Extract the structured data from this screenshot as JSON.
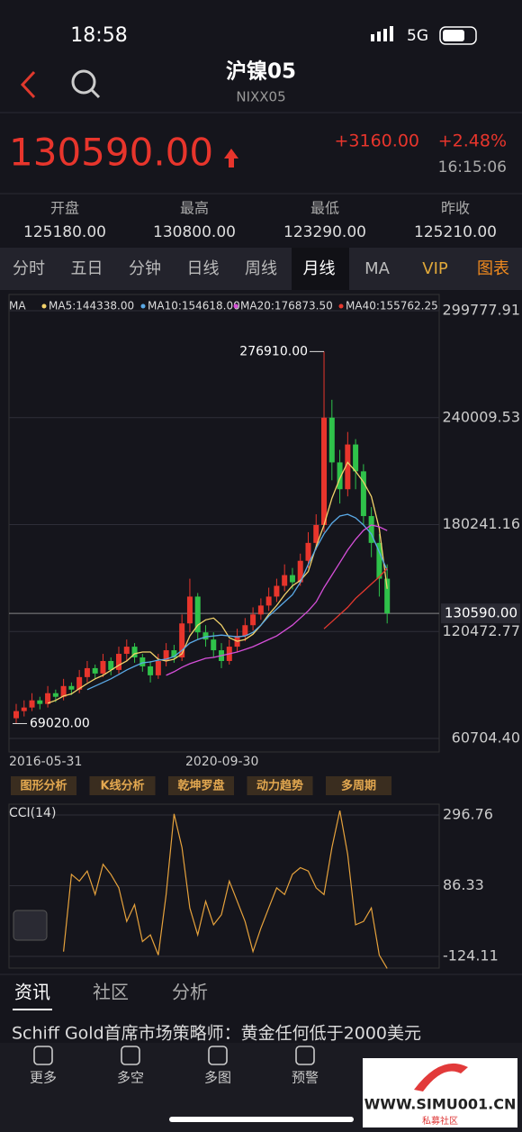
{
  "status": {
    "time": "18:58",
    "network": "5G"
  },
  "header": {
    "title": "沪镍05",
    "code": "NIXX05"
  },
  "quote": {
    "price": "130590.00",
    "change": "+3160.00",
    "pct": "+2.48%",
    "time": "16:15:06"
  },
  "stats": [
    {
      "label": "开盘",
      "value": "125180.00"
    },
    {
      "label": "最高",
      "value": "130800.00"
    },
    {
      "label": "最低",
      "value": "123290.00"
    },
    {
      "label": "昨收",
      "value": "125210.00"
    }
  ],
  "tabs": [
    "分时",
    "五日",
    "分钟",
    "日线",
    "周线",
    "月线",
    "MA",
    "VIP",
    "图表"
  ],
  "tools": [
    "图形分析",
    "K线分析",
    "乾坤罗盘",
    "动力趋势",
    "多周期"
  ],
  "news_tabs": [
    "资讯",
    "社区",
    "分析"
  ],
  "headline": "Schiff Gold首席市场策略师：黄金任何低于2000美元",
  "nav": [
    "更多",
    "多空",
    "多图",
    "预警"
  ],
  "watermark": {
    "url": "WWW.SIMU001.CN",
    "name": "私募社区"
  },
  "chart_data": [
    {
      "type": "candlestick",
      "legend_title": "MA",
      "open": [
        72000,
        76000,
        78000,
        82000,
        80000,
        86000,
        84000,
        90000,
        88000,
        95000,
        100000,
        97000,
        104000,
        99000,
        108000,
        112000,
        106000,
        101000,
        96000,
        104000,
        110000,
        106000,
        125000,
        140000,
        120000,
        116000,
        110000,
        104000,
        112000,
        118000,
        124000,
        130000,
        135000,
        140000,
        146000,
        152000,
        148000,
        160000,
        170000,
        180000,
        240000,
        215000,
        200000,
        225000,
        210000,
        185000,
        170000,
        150000
      ],
      "high": [
        80000,
        82000,
        86000,
        84000,
        90000,
        88000,
        94000,
        92000,
        99000,
        104000,
        102000,
        108000,
        106000,
        112000,
        116000,
        114000,
        108000,
        104000,
        108000,
        114000,
        113000,
        130000,
        150000,
        142000,
        124000,
        120000,
        114000,
        116000,
        122000,
        128000,
        134000,
        139000,
        145000,
        150000,
        158000,
        156000,
        164000,
        176000,
        186000,
        276910,
        250000,
        222000,
        232000,
        228000,
        214000,
        190000,
        175000,
        158000
      ],
      "low": [
        69020,
        73000,
        76000,
        77000,
        78000,
        81000,
        82000,
        85000,
        86000,
        92000,
        94000,
        95000,
        96000,
        97000,
        104000,
        103000,
        98000,
        92000,
        94000,
        101000,
        103000,
        104000,
        120000,
        116000,
        112000,
        106000,
        100000,
        102000,
        109000,
        115000,
        121000,
        127000,
        132000,
        137000,
        143000,
        144000,
        146000,
        156000,
        166000,
        176000,
        205000,
        192000,
        196000,
        200000,
        180000,
        162000,
        140000,
        125000
      ],
      "close": [
        76000,
        78000,
        82000,
        80000,
        86000,
        84000,
        90000,
        88000,
        95000,
        100000,
        97000,
        104000,
        99000,
        108000,
        112000,
        106000,
        101000,
        96000,
        104000,
        110000,
        106000,
        125000,
        140000,
        120000,
        116000,
        110000,
        104000,
        112000,
        118000,
        124000,
        130000,
        135000,
        140000,
        146000,
        152000,
        148000,
        160000,
        170000,
        180000,
        240000,
        215000,
        200000,
        225000,
        210000,
        185000,
        170000,
        150000,
        130590
      ],
      "up_color": "#e8352c",
      "down_color": "#2fc24a",
      "series": [
        {
          "name": "MA5:144338.00",
          "color": "#f3d36b",
          "values": [
            null,
            null,
            null,
            null,
            80400,
            82000,
            84400,
            85600,
            88600,
            91400,
            94000,
            96000,
            98800,
            101600,
            104000,
            108000,
            109000,
            109000,
            105000,
            104000,
            105000,
            108000,
            118000,
            124000,
            127000,
            128000,
            124000,
            117000,
            115000,
            116000,
            119000,
            124000,
            130000,
            135000,
            141000,
            146000,
            149000,
            154000,
            168000,
            180000,
            195000,
            206000,
            215000,
            210000,
            204000,
            196000,
            178000,
            144338
          ]
        },
        {
          "name": "MA10:154618.00",
          "color": "#5aa9e6",
          "values": [
            null,
            null,
            null,
            null,
            null,
            null,
            null,
            null,
            null,
            88000,
            90000,
            92000,
            94000,
            96500,
            99000,
            101000,
            103000,
            103500,
            104500,
            105000,
            106500,
            110000,
            114000,
            116000,
            117500,
            118000,
            118500,
            118000,
            117500,
            118000,
            120000,
            124000,
            129000,
            133000,
            137000,
            141000,
            148000,
            158000,
            167000,
            175000,
            181000,
            185000,
            186000,
            184000,
            180000,
            175000,
            165000,
            154618
          ]
        },
        {
          "name": "MA20:176873.50",
          "color": "#d64fd9",
          "values": [
            null,
            null,
            null,
            null,
            null,
            null,
            null,
            null,
            null,
            null,
            null,
            null,
            null,
            null,
            null,
            null,
            null,
            null,
            null,
            96000,
            98000,
            100500,
            102500,
            104000,
            105500,
            106000,
            107000,
            108000,
            109000,
            110500,
            112000,
            114000,
            116000,
            118000,
            121000,
            124000,
            128000,
            132000,
            137000,
            145000,
            152000,
            159000,
            166000,
            172000,
            177000,
            180000,
            179000,
            176873.5
          ]
        },
        {
          "name": "MA40:155762.25",
          "color": "#e5392f",
          "values": [
            null,
            null,
            null,
            null,
            null,
            null,
            null,
            null,
            null,
            null,
            null,
            null,
            null,
            null,
            null,
            null,
            null,
            null,
            null,
            null,
            null,
            null,
            null,
            null,
            null,
            null,
            null,
            null,
            null,
            null,
            null,
            null,
            null,
            null,
            null,
            null,
            null,
            null,
            null,
            122000,
            126000,
            130000,
            134000,
            139000,
            143000,
            147000,
            151000,
            155762.25
          ]
        }
      ],
      "ylim": [
        60704.4,
        299777.91
      ],
      "yticks": [
        299777.91,
        240009.53,
        180241.16,
        {
          "value": 120472.77,
          "label": "120472.77"
        },
        {
          "value": 60704.4,
          "label": "60704.40"
        }
      ],
      "last_price": {
        "value": 130590,
        "label": "130590.00"
      },
      "annotations": [
        {
          "value": 276910,
          "label": "276910.00"
        },
        {
          "value": 69020,
          "label": "69020.00"
        }
      ],
      "date_labels": [
        "2016-05-31",
        "2020-09-30"
      ],
      "grid": true
    },
    {
      "type": "line",
      "title": "CCI(14)",
      "color": "#e6a23c",
      "values": [
        null,
        null,
        null,
        null,
        null,
        null,
        -110,
        120,
        100,
        130,
        60,
        150,
        120,
        80,
        -20,
        30,
        -80,
        -60,
        -120,
        60,
        300,
        200,
        20,
        -60,
        40,
        -30,
        0,
        100,
        40,
        -20,
        -110,
        -40,
        20,
        80,
        60,
        120,
        140,
        130,
        80,
        60,
        200,
        310,
        180,
        -30,
        -20,
        20,
        -120,
        -160
      ],
      "ylim": [
        -124.11,
        296.76
      ],
      "yticks": [
        296.76,
        86.33,
        -124.11
      ],
      "grid": true
    }
  ]
}
